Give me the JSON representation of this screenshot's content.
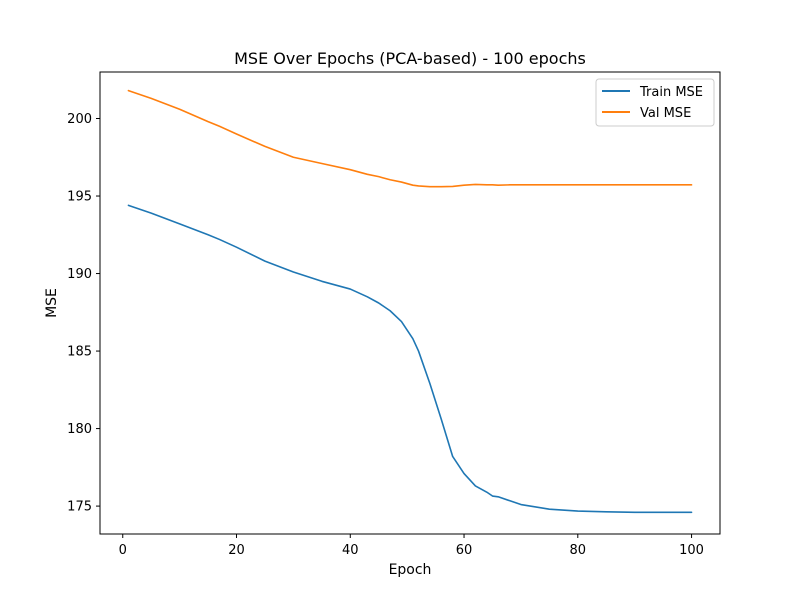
{
  "chart_data": {
    "type": "line",
    "title": "MSE Over Epochs (PCA-based) - 100 epochs",
    "xlabel": "Epoch",
    "ylabel": "MSE",
    "xlim": [
      -4,
      105
    ],
    "ylim": [
      173.2,
      203.0
    ],
    "xticks": [
      0,
      20,
      40,
      60,
      80,
      100
    ],
    "yticks": [
      175,
      180,
      185,
      190,
      195,
      200
    ],
    "grid": false,
    "legend_position": "top-right",
    "x": [
      1,
      5,
      10,
      15,
      17,
      20,
      25,
      30,
      35,
      40,
      43,
      45,
      47,
      49,
      51,
      52,
      54,
      56,
      58,
      60,
      62,
      64,
      65,
      66,
      68,
      70,
      75,
      80,
      85,
      90,
      95,
      100
    ],
    "series": [
      {
        "name": "Train MSE",
        "color": "#1f77b4",
        "values": [
          194.4,
          193.9,
          193.2,
          192.5,
          192.2,
          191.7,
          190.8,
          190.1,
          189.5,
          189.0,
          188.5,
          188.1,
          187.6,
          186.9,
          185.8,
          185.0,
          182.9,
          180.6,
          178.2,
          177.1,
          176.3,
          175.9,
          175.65,
          175.6,
          175.35,
          175.1,
          174.8,
          174.68,
          174.63,
          174.6,
          174.6,
          174.6
        ]
      },
      {
        "name": "Val MSE",
        "color": "#ff7f0e",
        "values": [
          201.8,
          201.3,
          200.6,
          199.8,
          199.5,
          199.0,
          198.2,
          197.5,
          197.1,
          196.7,
          196.4,
          196.25,
          196.05,
          195.9,
          195.7,
          195.65,
          195.6,
          195.6,
          195.62,
          195.7,
          195.75,
          195.72,
          195.72,
          195.7,
          195.72,
          195.72,
          195.72,
          195.72,
          195.72,
          195.72,
          195.72,
          195.72
        ]
      }
    ]
  }
}
